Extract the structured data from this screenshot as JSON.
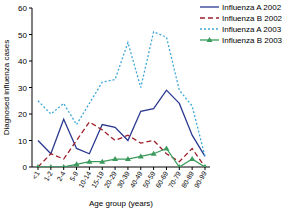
{
  "chart_data": {
    "type": "line",
    "x_label": "Age group (years)",
    "y_label": "Diagnosed influenza cases",
    "categories": [
      "<1",
      "1-2",
      "2-4",
      "5-9",
      "10-14",
      "15-19",
      "20-29",
      "30-39",
      "40-49",
      "50-59",
      "60-69",
      "70-79",
      "80-89",
      "90-99"
    ],
    "series": [
      {
        "name": "Influenza A 2002",
        "color": "#2b3990",
        "line_style": "solid",
        "values": [
          10,
          5,
          18,
          7,
          5,
          16,
          15,
          10,
          21,
          22,
          29,
          24,
          12,
          4
        ]
      },
      {
        "name": "Influenza B 2002",
        "color": "#9e1f2a",
        "line_style": "dashed",
        "values": [
          0,
          5,
          3,
          10,
          17,
          14,
          10,
          12,
          9,
          10,
          5,
          2,
          7,
          0
        ]
      },
      {
        "name": "Influenza A 2003",
        "color": "#3fa7d6",
        "line_style": "dotted",
        "values": [
          25,
          20,
          24,
          16,
          24,
          32,
          33,
          47,
          30,
          51,
          49,
          29,
          23,
          4
        ]
      },
      {
        "name": "Influenza B 2003",
        "color": "#3a9b5c",
        "line_style": "solid",
        "marker": "triangle",
        "values": [
          0,
          0,
          0,
          1,
          2,
          2,
          3,
          3,
          4,
          5,
          7,
          0,
          3,
          0
        ]
      }
    ],
    "ylim": [
      0,
      60
    ],
    "yticks": [
      0,
      10,
      20,
      30,
      40,
      50,
      60
    ],
    "grid": false,
    "legend": "upper right"
  }
}
